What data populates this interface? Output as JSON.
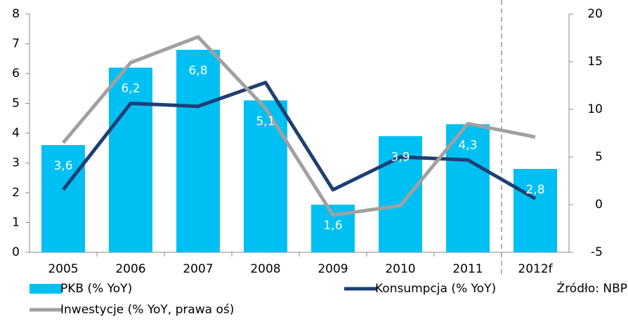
{
  "chart_data": {
    "type": "bar_line",
    "categories": [
      "2005",
      "2006",
      "2007",
      "2008",
      "2009",
      "2010",
      "2011",
      "2012f"
    ],
    "series": [
      {
        "name": "PKB (% YoY)",
        "color": "#00c0f3",
        "kind": "bar",
        "values": [
          3.6,
          6.2,
          6.8,
          5.1,
          1.6,
          3.9,
          4.3,
          2.8
        ],
        "value_labels": [
          "3,6",
          "6,2",
          "6,8",
          "5,1",
          "1,6",
          "3,9",
          "4,3",
          "2,8"
        ]
      },
      {
        "name": "Konsumpcja (% YoY)",
        "color": "#1f3f73",
        "kind": "line",
        "values": [
          2.1,
          5.0,
          4.9,
          5.7,
          2.1,
          3.2,
          3.1,
          1.8
        ]
      },
      {
        "name": "Inwestycje (% YoY, prawa oś)",
        "color": "#a0a0a0",
        "kind": "line",
        "axis": "y2",
        "values": [
          6.5,
          14.9,
          17.6,
          10.1,
          -1.1,
          -0.1,
          8.5,
          7.1
        ]
      }
    ],
    "ylim": [
      0,
      8
    ],
    "yticks": [
      0,
      1,
      2,
      3,
      4,
      5,
      6,
      7,
      8
    ],
    "y2lim": [
      -5,
      20
    ],
    "y2ticks": [
      -5,
      0,
      5,
      10,
      15,
      20
    ],
    "source": "Źródło: NBP"
  }
}
